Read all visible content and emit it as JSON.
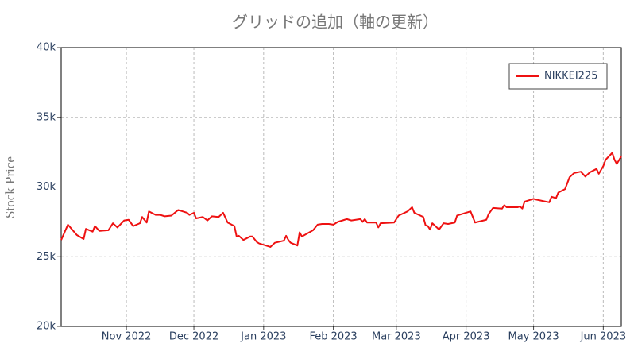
{
  "chart_data": {
    "type": "line",
    "title": "グリッドの追加（軸の更新）",
    "y_label": "Stock Price",
    "x": [
      "2022-10-03",
      "2022-10-06",
      "2022-10-10",
      "2022-10-13",
      "2022-10-14",
      "2022-10-17",
      "2022-10-18",
      "2022-10-20",
      "2022-10-24",
      "2022-10-26",
      "2022-10-28",
      "2022-10-31",
      "2022-11-02",
      "2022-11-04",
      "2022-11-07",
      "2022-11-08",
      "2022-11-10",
      "2022-11-11",
      "2022-11-14",
      "2022-11-16",
      "2022-11-18",
      "2022-11-21",
      "2022-11-24",
      "2022-11-28",
      "2022-11-29",
      "2022-12-01",
      "2022-12-02",
      "2022-12-05",
      "2022-12-07",
      "2022-12-09",
      "2022-12-12",
      "2022-12-14",
      "2022-12-16",
      "2022-12-19",
      "2022-12-20",
      "2022-12-21",
      "2022-12-23",
      "2022-12-26",
      "2022-12-27",
      "2022-12-29",
      "2022-12-30",
      "2023-01-04",
      "2023-01-06",
      "2023-01-10",
      "2023-01-11",
      "2023-01-12",
      "2023-01-13",
      "2023-01-16",
      "2023-01-17",
      "2023-01-18",
      "2023-01-23",
      "2023-01-25",
      "2023-01-27",
      "2023-01-30",
      "2023-02-01",
      "2023-02-03",
      "2023-02-07",
      "2023-02-09",
      "2023-02-13",
      "2023-02-14",
      "2023-02-15",
      "2023-02-16",
      "2023-02-20",
      "2023-02-21",
      "2023-02-22",
      "2023-02-28",
      "2023-03-02",
      "2023-03-06",
      "2023-03-08",
      "2023-03-09",
      "2023-03-13",
      "2023-03-14",
      "2023-03-15",
      "2023-03-16",
      "2023-03-17",
      "2023-03-20",
      "2023-03-22",
      "2023-03-24",
      "2023-03-27",
      "2023-03-28",
      "2023-03-30",
      "2023-04-03",
      "2023-04-05",
      "2023-04-10",
      "2023-04-11",
      "2023-04-13",
      "2023-04-17",
      "2023-04-18",
      "2023-04-19",
      "2023-04-24",
      "2023-04-25",
      "2023-04-26",
      "2023-04-27",
      "2023-05-01",
      "2023-05-02",
      "2023-05-08",
      "2023-05-09",
      "2023-05-11",
      "2023-05-12",
      "2023-05-15",
      "2023-05-17",
      "2023-05-19",
      "2023-05-22",
      "2023-05-24",
      "2023-05-26",
      "2023-05-29",
      "2023-05-30",
      "2023-06-01",
      "2023-06-02",
      "2023-06-05",
      "2023-06-06",
      "2023-06-07",
      "2023-06-09"
    ],
    "series": [
      {
        "name": "NIKKEI225",
        "color": "#ee1111",
        "values": [
          26200,
          27300,
          26550,
          26270,
          27000,
          26800,
          27200,
          26850,
          26900,
          27400,
          27100,
          27600,
          27650,
          27200,
          27400,
          27850,
          27450,
          28250,
          28000,
          28000,
          27900,
          27950,
          28350,
          28150,
          28000,
          28150,
          27750,
          27850,
          27600,
          27900,
          27850,
          28150,
          27450,
          27200,
          26450,
          26500,
          26200,
          26450,
          26450,
          26050,
          25950,
          25700,
          26000,
          26150,
          26500,
          26200,
          26000,
          25800,
          26750,
          26450,
          26900,
          27300,
          27350,
          27350,
          27300,
          27500,
          27700,
          27600,
          27700,
          27500,
          27700,
          27450,
          27450,
          27100,
          27400,
          27450,
          27950,
          28250,
          28550,
          28150,
          27850,
          27250,
          27200,
          26950,
          27400,
          26950,
          27400,
          27350,
          27450,
          27950,
          28050,
          28250,
          27450,
          27650,
          28050,
          28500,
          28450,
          28700,
          28550,
          28550,
          28600,
          28450,
          28950,
          29150,
          29100,
          28900,
          29300,
          29200,
          29600,
          29850,
          30700,
          31000,
          31100,
          30750,
          31050,
          31300,
          30950,
          31500,
          31950,
          32450,
          31950,
          31650,
          32200
        ]
      }
    ],
    "xlim": [
      "2022-10-03",
      "2023-06-09"
    ],
    "xticks": [
      {
        "value": "2022-11-01",
        "label": "Nov 2022"
      },
      {
        "value": "2022-12-01",
        "label": "Dec 2022"
      },
      {
        "value": "2023-01-01",
        "label": "Jan 2023"
      },
      {
        "value": "2023-02-01",
        "label": "Feb 2023"
      },
      {
        "value": "2023-03-01",
        "label": "Mar 2023"
      },
      {
        "value": "2023-04-01",
        "label": "Apr 2023"
      },
      {
        "value": "2023-05-01",
        "label": "May 2023"
      },
      {
        "value": "2023-06-01",
        "label": "Jun 2023"
      }
    ],
    "ylim": [
      20000,
      40000
    ],
    "yticks": [
      {
        "value": 20000,
        "label": "20k"
      },
      {
        "value": 25000,
        "label": "25k"
      },
      {
        "value": 30000,
        "label": "30k"
      },
      {
        "value": 35000,
        "label": "35k"
      },
      {
        "value": 40000,
        "label": "40k"
      }
    ],
    "grid": true,
    "legend": "upper right"
  }
}
